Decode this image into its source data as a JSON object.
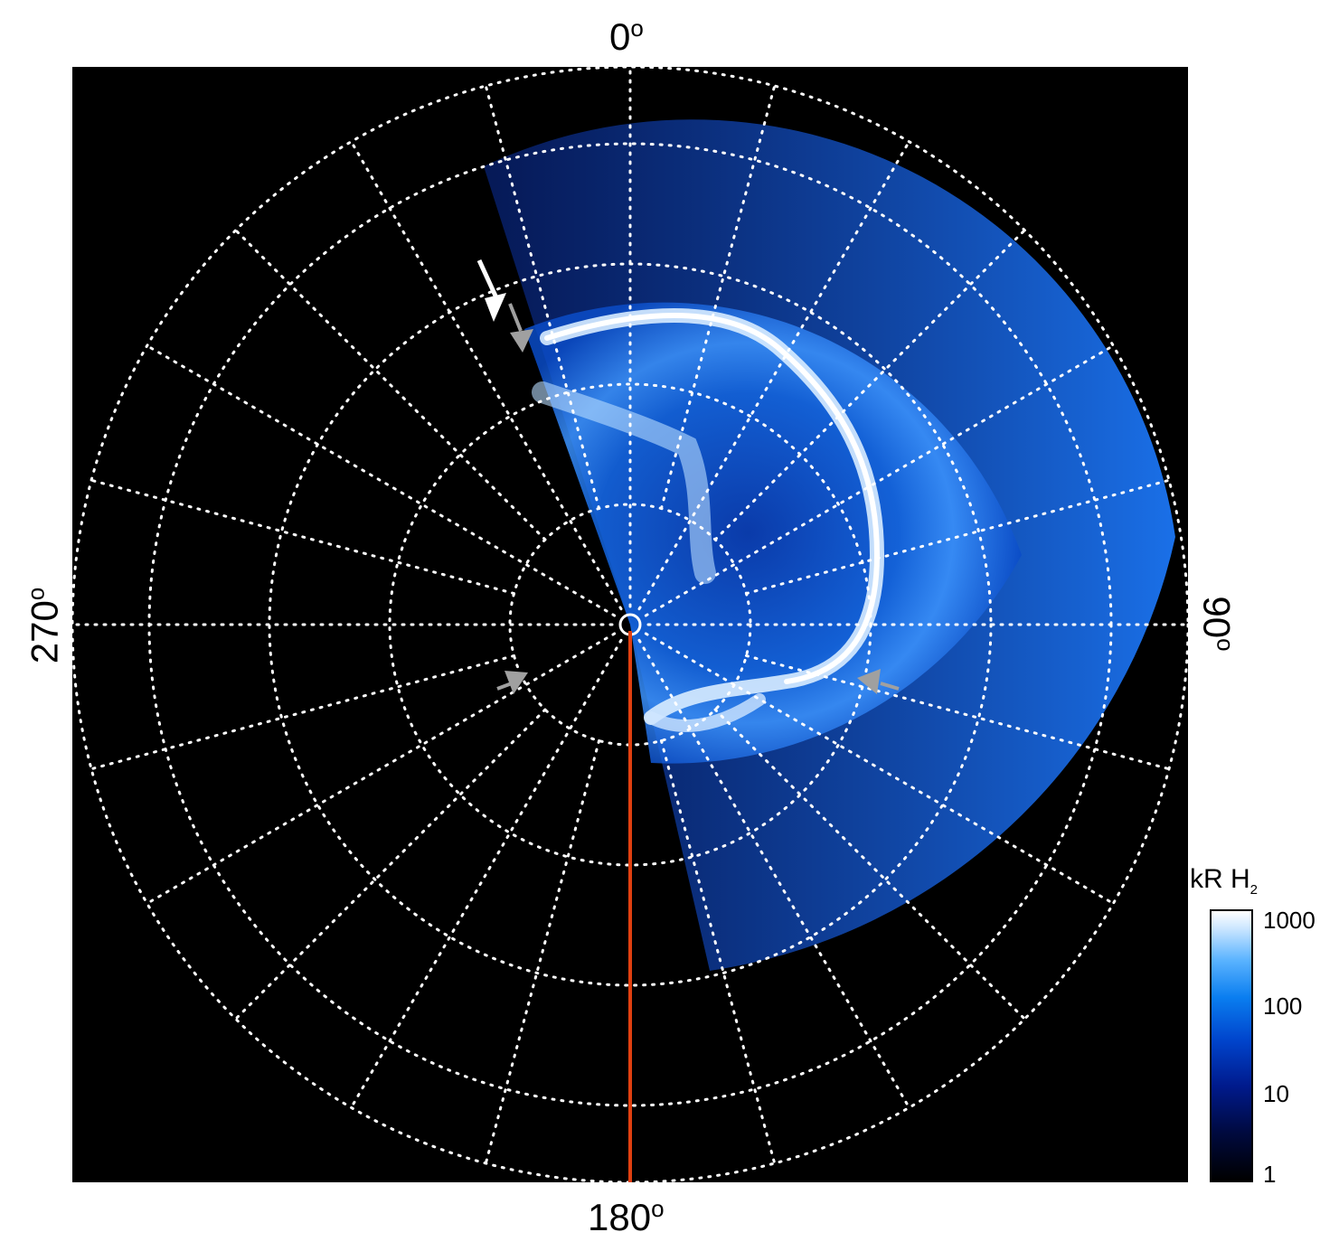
{
  "labels": {
    "top": "0",
    "bottom": "180",
    "left": "270",
    "right": "90",
    "degree": "o"
  },
  "colorbar": {
    "title": "kR H",
    "title_sub": "2",
    "ticks": [
      "1000",
      "100",
      "10",
      "1"
    ],
    "colors": [
      "#000000",
      "#001a8c",
      "#0a7ef0",
      "#ffffff"
    ]
  },
  "colors": {
    "background": "#000000",
    "grid": "#ffffff",
    "meridian": "#e04010",
    "arrow_white": "#ffffff",
    "arrow_gray": "#a0a0a0"
  }
}
